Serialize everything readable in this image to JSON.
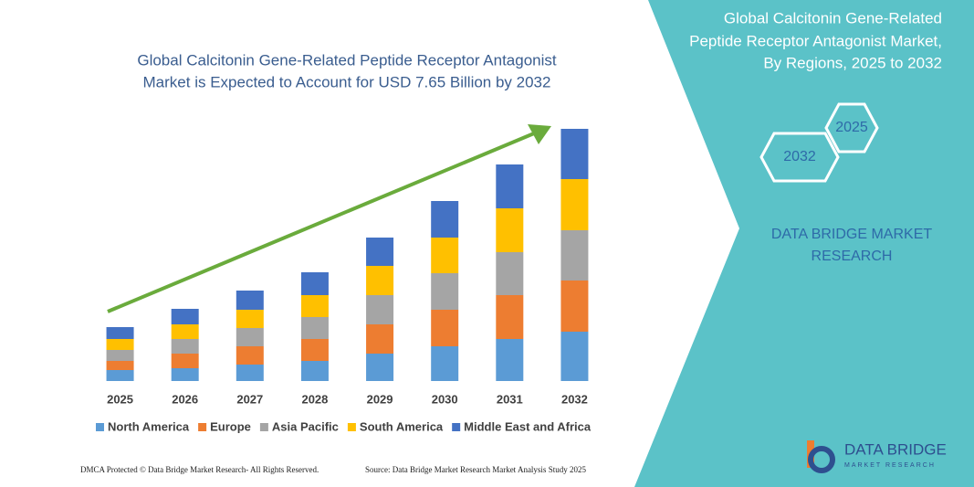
{
  "chart_data": {
    "type": "bar",
    "stacked": true,
    "title": [
      "Global Calcitonin Gene-Related Peptide Receptor Antagonist",
      "Market is Expected to Account for USD 7.65 Billion by 2032"
    ],
    "categories": [
      "2025",
      "2026",
      "2027",
      "2028",
      "2029",
      "2030",
      "2031",
      "2032"
    ],
    "series": [
      {
        "name": "North America",
        "color": "#5b9bd5",
        "values": [
          12,
          14,
          18,
          22,
          30,
          38,
          46,
          54
        ]
      },
      {
        "name": "Europe",
        "color": "#ed7d31",
        "values": [
          10,
          16,
          20,
          24,
          32,
          40,
          48,
          56
        ]
      },
      {
        "name": "Asia Pacific",
        "color": "#a5a5a5",
        "values": [
          12,
          16,
          20,
          24,
          32,
          40,
          47,
          55
        ]
      },
      {
        "name": "South America",
        "color": "#ffc000",
        "values": [
          12,
          16,
          20,
          24,
          32,
          39,
          48,
          56
        ]
      },
      {
        "name": "Middle East and Africa",
        "color": "#4472c4",
        "values": [
          13,
          17,
          21,
          25,
          31,
          40,
          48,
          55
        ]
      }
    ],
    "ylim": [
      0,
      276
    ],
    "trend_color": "#6aab3c"
  },
  "panel": {
    "title": [
      "Global Calcitonin Gene-Related",
      "Peptide Receptor Antagonist Market,",
      "By Regions, 2025 to 2032"
    ],
    "hex_years": [
      "2025",
      "2032"
    ],
    "brand": [
      "DATA BRIDGE MARKET",
      "RESEARCH"
    ]
  },
  "logo": {
    "name": "DATA BRIDGE",
    "tagline": "MARKET RESEARCH"
  },
  "footer": {
    "left": "DMCA Protected © Data Bridge Market Research- All Rights Reserved.",
    "right": "Source: Data Bridge Market Research Market Analysis Study 2025"
  }
}
